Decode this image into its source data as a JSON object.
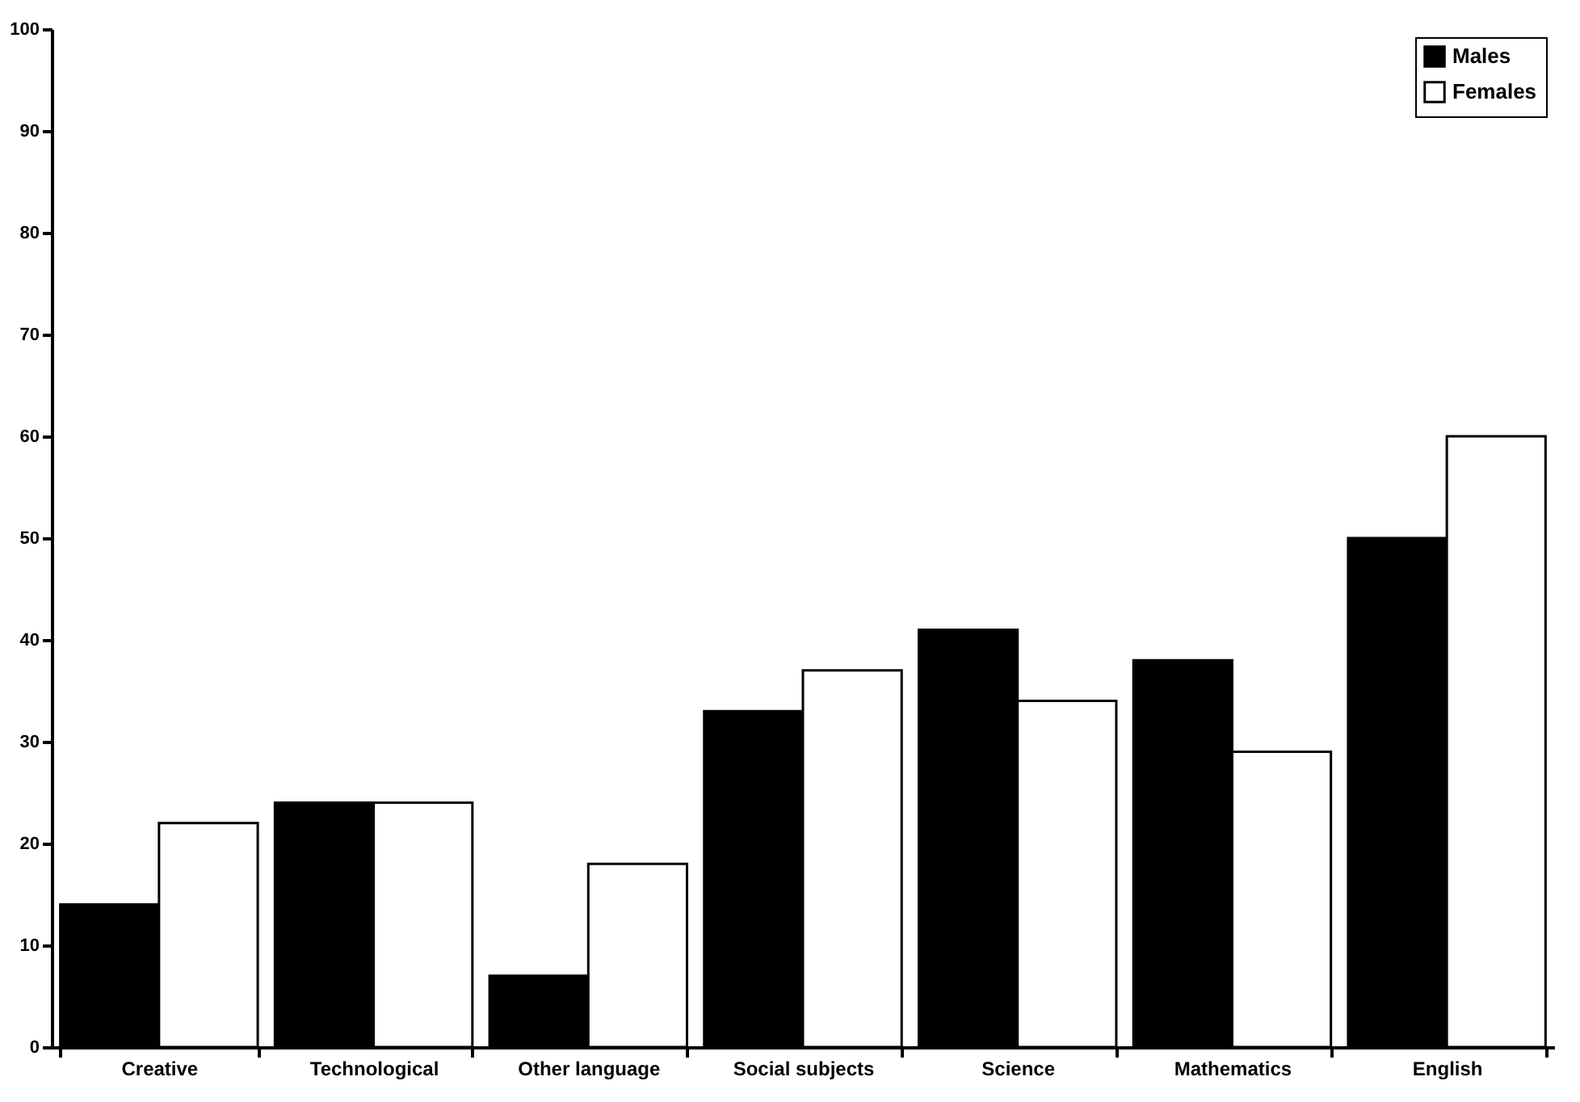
{
  "chart_data": {
    "type": "bar",
    "categories": [
      "Creative",
      "Technological",
      "Other language",
      "Social subjects",
      "Science",
      "Mathematics",
      "English"
    ],
    "series": [
      {
        "name": "Males",
        "color": "#000000",
        "values": [
          14,
          24,
          7,
          33,
          41,
          38,
          50
        ]
      },
      {
        "name": "Females",
        "color": "#ffffff",
        "values": [
          22,
          24,
          18,
          37,
          34,
          29,
          60
        ]
      }
    ],
    "ylim": [
      0,
      100
    ],
    "yticks": [
      0,
      10,
      20,
      30,
      40,
      50,
      60,
      70,
      80,
      90,
      100
    ],
    "grid": false,
    "legend": "top right"
  }
}
